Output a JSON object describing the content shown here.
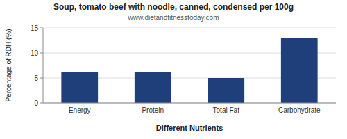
{
  "chart_data": {
    "type": "bar",
    "title": "Soup, tomato beef with noodle, canned, condensed per 100g",
    "subtitle": "www.dietandfitnesstoday.com",
    "xlabel": "Different Nutrients",
    "ylabel": "Percentage of RDH (%)",
    "categories": [
      "Energy",
      "Protein",
      "Total Fat",
      "Carbohydrate"
    ],
    "values": [
      6.2,
      6.2,
      5.0,
      13.0
    ],
    "color": "#1f3f7a",
    "ylim": [
      0,
      15
    ],
    "yticks": [
      0,
      5,
      10,
      15
    ],
    "grid": true
  }
}
